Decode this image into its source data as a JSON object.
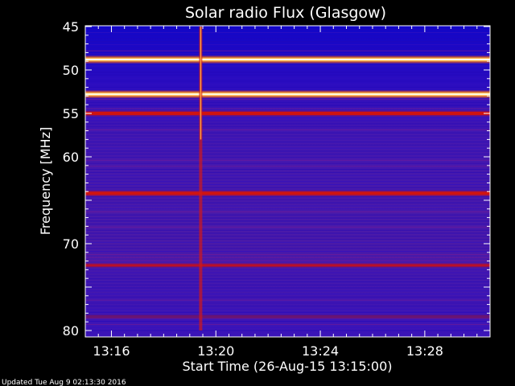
{
  "chart_data": {
    "type": "heatmap",
    "title": "Solar radio Flux (Glasgow)",
    "xlabel": "Start Time (26-Aug-15 13:15:00)",
    "ylabel": "Frequency [MHz]",
    "x_range_minutes": [
      0,
      15.5
    ],
    "x_ticks": [
      {
        "label": "13:16",
        "minute": 1
      },
      {
        "label": "13:20",
        "minute": 5
      },
      {
        "label": "13:24",
        "minute": 9
      },
      {
        "label": "13:28",
        "minute": 13
      }
    ],
    "ylim_mhz": [
      45,
      80
    ],
    "y_inverted": true,
    "y_ticks": [
      45,
      50,
      55,
      60,
      65,
      70,
      75,
      80
    ],
    "y_tick_labels": [
      "45",
      "50",
      "55",
      "60",
      "",
      "70",
      "",
      "80"
    ],
    "bright_bands_mhz": [
      {
        "mhz": 48.8,
        "intensity": "saturated"
      },
      {
        "mhz": 52.8,
        "intensity": "saturated"
      },
      {
        "mhz": 55.0,
        "intensity": "high"
      },
      {
        "mhz": 64.2,
        "intensity": "high"
      },
      {
        "mhz": 72.5,
        "intensity": "medium"
      },
      {
        "mhz": 78.4,
        "intensity": "low"
      }
    ],
    "burst": {
      "time": "13:19:25",
      "minute": 4.42,
      "mhz_from": 45,
      "mhz_to": 80
    },
    "colormap": [
      "#0000b4",
      "#6a1fb0",
      "#c0124a",
      "#ff3000",
      "#ff9a20",
      "#ffffe0"
    ]
  },
  "footer": {
    "updated": "Updated Tue Aug  9 02:13:30 2016"
  }
}
